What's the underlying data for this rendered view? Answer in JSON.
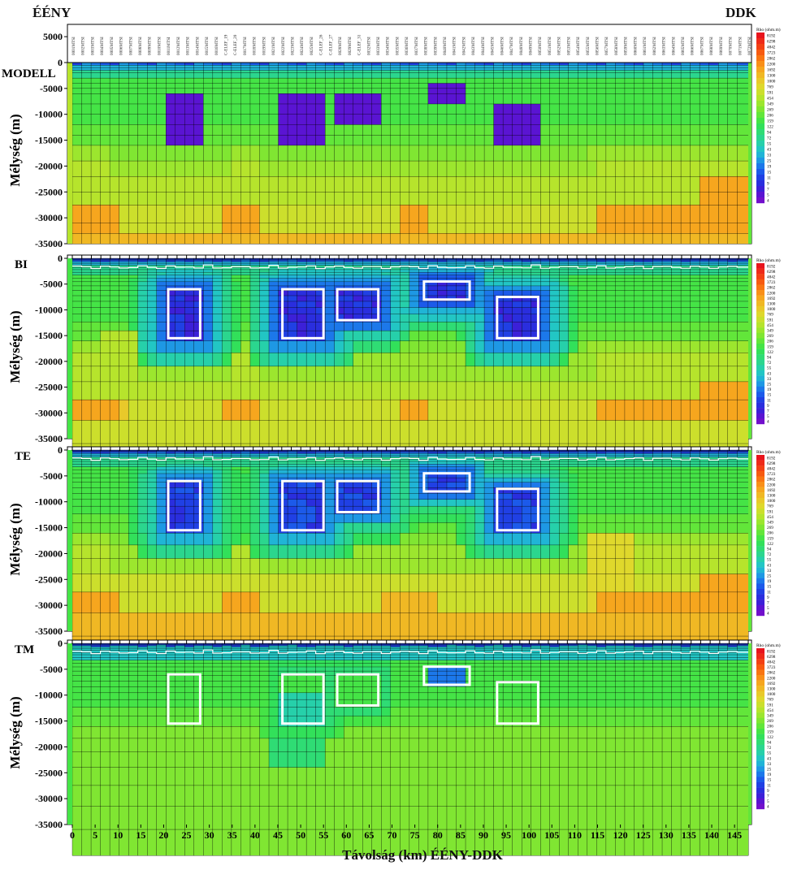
{
  "figure": {
    "direction_left": "ÉÉNY",
    "direction_right": "DDK",
    "xlabel": "Távolság (km) ÉÉNY-DDK",
    "colorbar_title": "Rho (ohm.m)"
  },
  "chart_data": {
    "type": "heatmap",
    "x_range_km": [
      0,
      148
    ],
    "x_ticks": [
      0,
      5,
      10,
      15,
      20,
      25,
      30,
      35,
      40,
      45,
      50,
      55,
      60,
      65,
      70,
      75,
      80,
      85,
      90,
      95,
      100,
      105,
      110,
      115,
      120,
      125,
      130,
      135,
      140,
      145
    ],
    "y_range_m": [
      -35000,
      0
    ],
    "colorbar_levels": [
      8192,
      6298,
      4842,
      3723,
      2862,
      2200,
      1692,
      1300,
      1000,
      769,
      591,
      454,
      349,
      269,
      206,
      159,
      122,
      94,
      72,
      55,
      43,
      33,
      25,
      19,
      15,
      11,
      9,
      7,
      5,
      4
    ],
    "colorbar_colors": [
      "#e8141c",
      "#ee2a18",
      "#f34014",
      "#f75a10",
      "#f97512",
      "#f98f18",
      "#f6a61e",
      "#f0b824",
      "#e9c92a",
      "#dfd82c",
      "#ccdf2c",
      "#b6e42c",
      "#9ce62e",
      "#80e632",
      "#62e63a",
      "#45e446",
      "#32e05a",
      "#2fdc74",
      "#2bd68e",
      "#26d0aa",
      "#22c6c4",
      "#20b4d6",
      "#1e98e4",
      "#1c78ea",
      "#1c5aea",
      "#2040e4",
      "#2a2ede",
      "#3c20d8",
      "#5a14d2",
      "#7210cc"
    ],
    "station_labels": [
      "0001MTSI",
      "0002MTSI",
      "0003MTSI",
      "0004MTSI",
      "0005MTSI",
      "0006MTSI",
      "0007MTSI",
      "0008MTSI",
      "0009MTSI",
      "0010MTSI",
      "0011MTSI",
      "0012MTSI",
      "0013MTSI",
      "0014MTSI",
      "0015MTSI",
      "0016MTSI",
      "C-ELEF_19",
      "C-ELEF_20",
      "0017MTSI",
      "0018MTSI",
      "0019MTSI",
      "0021MTSI",
      "0022MTSI",
      "0023MTSI",
      "0024MTSI",
      "0025MTSI",
      "C-ELEF_26",
      "C-ELEF_27",
      "0028MTSI",
      "0029MTSI",
      "C-ELEF_31",
      "0032MTSI",
      "0033MTSI",
      "0034MTSI",
      "0035MTSI",
      "0036MTSI",
      "0037MTSI",
      "0038MTSI",
      "0039MTSI",
      "0040MTSI",
      "0041MTSI",
      "0042MTSI",
      "0043MTSI",
      "0044MTSI",
      "0045MTSI",
      "0046MTSI",
      "0047MTSI",
      "0048MTSI",
      "0049MTSI",
      "0050MTSI",
      "0051MTSI",
      "0052MTSI",
      "0053MTSI",
      "0054MTSI",
      "0055MTSI",
      "0056MTSI",
      "0057MTSI",
      "0058MTSI",
      "0059MTSI",
      "0060MTSI",
      "0061MTSI",
      "0062MTSI",
      "0063MTSI",
      "0064MTSI",
      "0065MTSI",
      "0066MTSI",
      "0067MTSI",
      "0068MTSI",
      "0069MTSI",
      "0070MTSI",
      "0071MTSI",
      "0072MTSI"
    ],
    "conductive_blocks_km_m": [
      {
        "x": [
          21,
          28
        ],
        "y": [
          -6000,
          -15500
        ]
      },
      {
        "x": [
          46,
          55
        ],
        "y": [
          -6000,
          -15500
        ]
      },
      {
        "x": [
          58,
          67
        ],
        "y": [
          -6000,
          -12000
        ]
      },
      {
        "x": [
          77,
          87
        ],
        "y": [
          -4500,
          -8000
        ]
      },
      {
        "x": [
          93,
          102
        ],
        "y": [
          -7500,
          -15500
        ]
      }
    ],
    "panels": [
      {
        "label": "MODELL",
        "ylabel": "Mélység (m)",
        "y_ticks": [
          5000,
          0,
          -5000,
          -10000,
          -15000,
          -20000,
          -25000,
          -30000,
          -35000
        ],
        "kind": "model"
      },
      {
        "label": "BI",
        "ylabel": "Mélység (m)",
        "y_ticks": [
          0,
          -5000,
          -10000,
          -15000,
          -20000,
          -25000,
          -30000,
          -35000
        ],
        "kind": "bi"
      },
      {
        "label": "TE",
        "ylabel": "Mélység (m)",
        "y_ticks": [
          0,
          -5000,
          -10000,
          -15000,
          -20000,
          -25000,
          -30000,
          -35000
        ],
        "kind": "te"
      },
      {
        "label": "TM",
        "ylabel": "Mélység (m)",
        "y_ticks": [
          0,
          -5000,
          -10000,
          -15000,
          -20000,
          -25000,
          -30000,
          -35000
        ],
        "kind": "tm"
      }
    ]
  }
}
